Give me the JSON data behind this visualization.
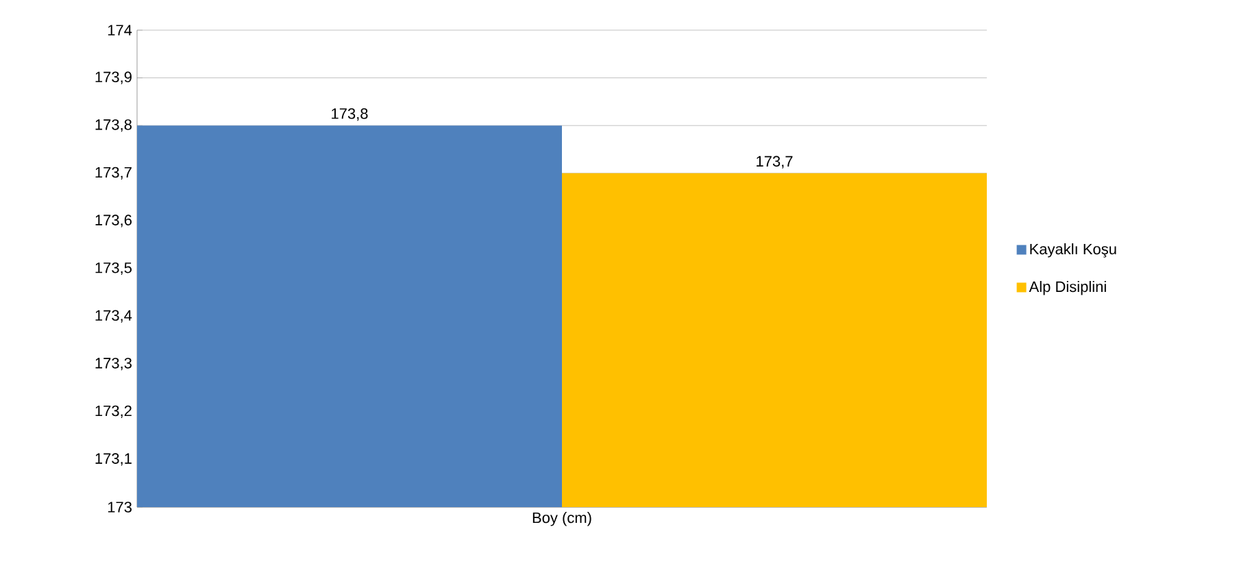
{
  "chart_data": {
    "type": "bar",
    "categories": [
      "Boy (cm)"
    ],
    "series": [
      {
        "name": "Kayaklı Koşu",
        "color": "#4f81bd",
        "values": [
          173.8
        ],
        "value_labels": [
          "173,8"
        ]
      },
      {
        "name": "Alp Disiplini",
        "color": "#ffc000",
        "values": [
          173.7
        ],
        "value_labels": [
          "173,7"
        ]
      }
    ],
    "ylim": [
      173,
      174
    ],
    "yticks": [
      173,
      {
        "value": 173.1,
        "label": "173,1"
      },
      {
        "value": 173.2,
        "label": "173,2"
      },
      {
        "value": 173.3,
        "label": "173,3"
      },
      {
        "value": 173.4,
        "label": "173,4"
      },
      {
        "value": 173.5,
        "label": "173,5"
      },
      {
        "value": 173.6,
        "label": "173,6"
      },
      {
        "value": 173.7,
        "label": "173,7"
      },
      {
        "value": 173.8,
        "label": "173,8"
      },
      {
        "value": 173.9,
        "label": "173,9"
      },
      174
    ],
    "grid": "y",
    "legend": "right"
  }
}
